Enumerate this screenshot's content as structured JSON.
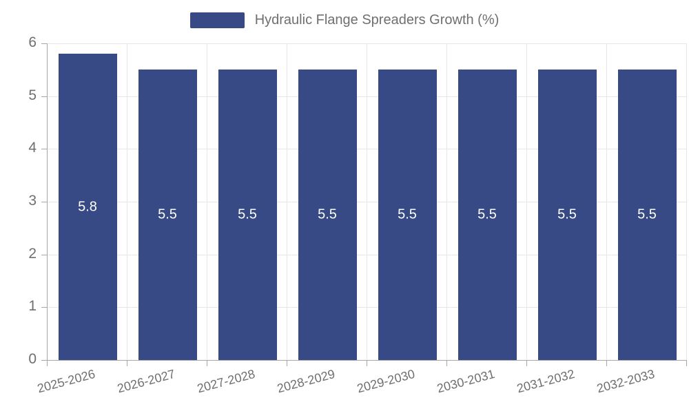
{
  "chart_data": {
    "type": "bar",
    "title": "Hydraulic Flange Spreaders Growth (%)",
    "legend_position": "top",
    "categories": [
      "2025-2026",
      "2026-2027",
      "2027-2028",
      "2028-2029",
      "2029-2030",
      "2030-2031",
      "2031-2032",
      "2032-2033"
    ],
    "values": [
      5.8,
      5.5,
      5.5,
      5.5,
      5.5,
      5.5,
      5.5,
      5.5
    ],
    "bar_labels": [
      "5.8",
      "5.5",
      "5.5",
      "5.5",
      "5.5",
      "5.5",
      "5.5",
      "5.5"
    ],
    "xlabel": "",
    "ylabel": "",
    "ylim": [
      0,
      6
    ],
    "y_ticks": [
      0,
      1,
      2,
      3,
      4,
      5,
      6
    ],
    "grid": true,
    "x_label_rotation_deg": -15,
    "colors": {
      "bar": "#384a85",
      "grid": "#e6e6e6",
      "axis": "#a6a6a6",
      "text": "#6f6f6f",
      "bar_label": "#ffffff",
      "background": "#ffffff"
    }
  }
}
